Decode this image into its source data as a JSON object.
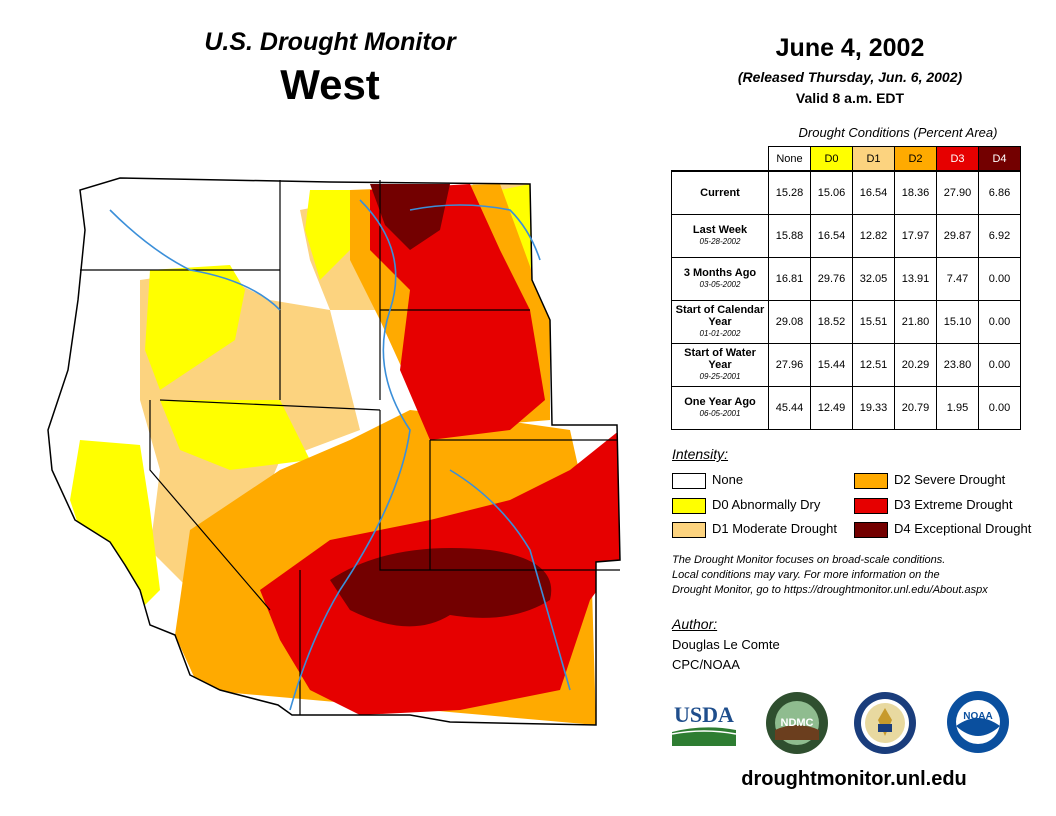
{
  "header": {
    "product_title": "U.S. Drought Monitor",
    "region": "West",
    "date": "June 4, 2002",
    "released": "(Released Thursday, Jun. 6, 2002)",
    "valid": "Valid 8 a.m. EDT"
  },
  "table": {
    "caption": "Drought Conditions (Percent Area)",
    "columns": [
      "None",
      "D0",
      "D1",
      "D2",
      "D3",
      "D4"
    ],
    "column_colors": [
      "#ffffff",
      "#ffff00",
      "#fcd37f",
      "#ffaa00",
      "#e60000",
      "#730000"
    ],
    "rows": [
      {
        "label": "Current",
        "date": "",
        "values": [
          "15.28",
          "15.06",
          "16.54",
          "18.36",
          "27.90",
          "6.86"
        ]
      },
      {
        "label": "Last Week",
        "date": "05-28-2002",
        "values": [
          "15.88",
          "16.54",
          "12.82",
          "17.97",
          "29.87",
          "6.92"
        ]
      },
      {
        "label": "3 Months Ago",
        "date": "03-05-2002",
        "values": [
          "16.81",
          "29.76",
          "32.05",
          "13.91",
          "7.47",
          "0.00"
        ]
      },
      {
        "label": "Start of Calendar Year",
        "date": "01-01-2002",
        "values": [
          "29.08",
          "18.52",
          "15.51",
          "21.80",
          "15.10",
          "0.00"
        ]
      },
      {
        "label": "Start of Water Year",
        "date": "09-25-2001",
        "values": [
          "27.96",
          "15.44",
          "12.51",
          "20.29",
          "23.80",
          "0.00"
        ]
      },
      {
        "label": "One Year Ago",
        "date": "06-05-2001",
        "values": [
          "45.44",
          "12.49",
          "19.33",
          "20.79",
          "1.95",
          "0.00"
        ]
      }
    ]
  },
  "legend": {
    "heading": "Intensity:",
    "items": [
      {
        "label": "None",
        "color": "#ffffff"
      },
      {
        "label": "D0 Abnormally Dry",
        "color": "#ffff00"
      },
      {
        "label": "D1 Moderate Drought",
        "color": "#fcd37f"
      },
      {
        "label": "D2 Severe Drought",
        "color": "#ffaa00"
      },
      {
        "label": "D3 Extreme Drought",
        "color": "#e60000"
      },
      {
        "label": "D4 Exceptional Drought",
        "color": "#730000"
      }
    ]
  },
  "note": {
    "line1": "The Drought Monitor focuses on broad-scale conditions.",
    "line2": "Local conditions may vary. For more information on the",
    "line3": "Drought Monitor, go to https://droughtmonitor.unl.edu/About.aspx"
  },
  "author": {
    "heading": "Author:",
    "name": "Douglas Le Comte",
    "org": "CPC/NOAA"
  },
  "logos": {
    "usda": "USDA",
    "ndmc": "NDMC",
    "noaa": "NOAA"
  },
  "footer": {
    "url": "droughtmonitor.unl.edu"
  }
}
